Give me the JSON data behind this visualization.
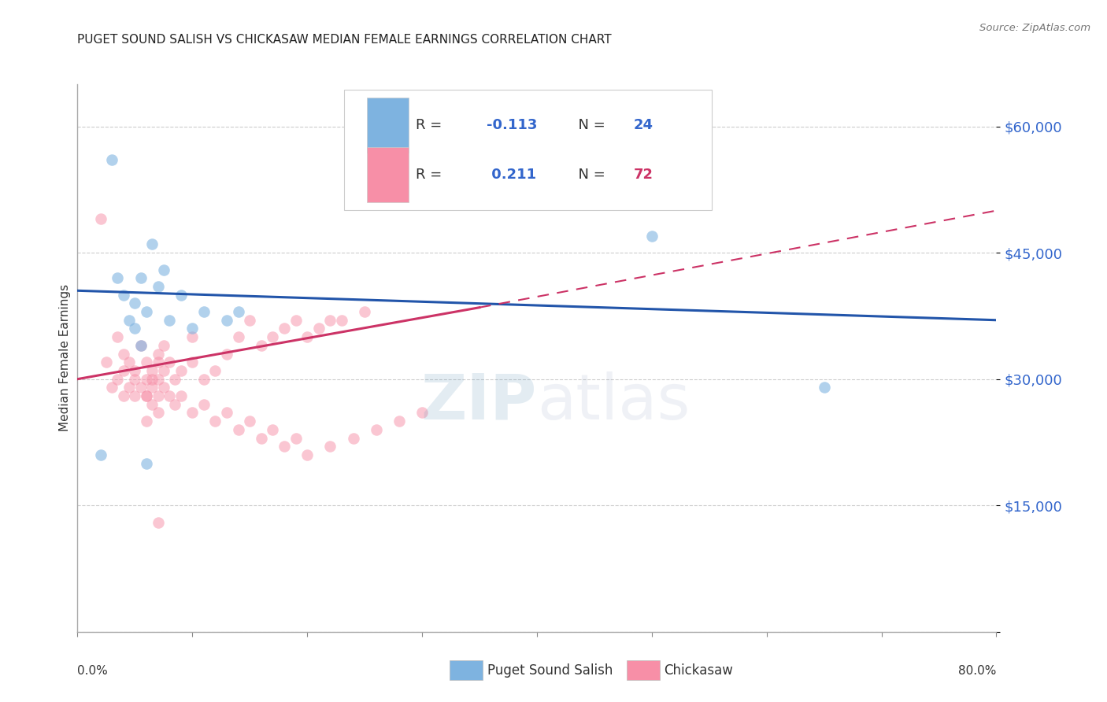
{
  "title": "PUGET SOUND SALISH VS CHICKASAW MEDIAN FEMALE EARNINGS CORRELATION CHART",
  "source": "Source: ZipAtlas.com",
  "ylabel": "Median Female Earnings",
  "yticks": [
    0,
    15000,
    30000,
    45000,
    60000
  ],
  "ytick_labels": [
    "",
    "$15,000",
    "$30,000",
    "$45,000",
    "$60,000"
  ],
  "ymax": 65000,
  "ymin": 0,
  "xmin": 0.0,
  "xmax": 0.8,
  "blue_color": "#7EB3E0",
  "pink_color": "#F78FA7",
  "blue_line_color": "#2255AA",
  "pink_line_color": "#CC3366",
  "ytick_color": "#3366CC",
  "title_color": "#222222",
  "source_color": "#777777",
  "blue_scatter_alpha": 0.6,
  "pink_scatter_alpha": 0.5,
  "marker_size": 110,
  "blue_x": [
    0.02,
    0.03,
    0.035,
    0.04,
    0.045,
    0.05,
    0.05,
    0.055,
    0.055,
    0.06,
    0.065,
    0.07,
    0.075,
    0.08,
    0.09,
    0.1,
    0.11,
    0.13,
    0.14,
    0.5,
    0.65,
    0.06
  ],
  "blue_y": [
    21000,
    56000,
    42000,
    40000,
    37000,
    36000,
    39000,
    34000,
    42000,
    38000,
    46000,
    41000,
    43000,
    37000,
    40000,
    36000,
    38000,
    37000,
    38000,
    47000,
    29000,
    20000
  ],
  "pink_x": [
    0.02,
    0.025,
    0.03,
    0.035,
    0.035,
    0.04,
    0.04,
    0.04,
    0.045,
    0.045,
    0.05,
    0.05,
    0.05,
    0.055,
    0.055,
    0.06,
    0.06,
    0.06,
    0.065,
    0.065,
    0.07,
    0.07,
    0.07,
    0.075,
    0.075,
    0.08,
    0.08,
    0.085,
    0.085,
    0.09,
    0.09,
    0.1,
    0.1,
    0.11,
    0.12,
    0.13,
    0.14,
    0.15,
    0.16,
    0.17,
    0.18,
    0.19,
    0.2,
    0.21,
    0.22,
    0.23,
    0.25,
    0.1,
    0.11,
    0.12,
    0.13,
    0.14,
    0.15,
    0.16,
    0.17,
    0.18,
    0.19,
    0.2,
    0.22,
    0.24,
    0.26,
    0.28,
    0.3,
    0.06,
    0.065,
    0.07,
    0.07,
    0.065,
    0.06,
    0.07,
    0.075
  ],
  "pink_y": [
    49000,
    32000,
    29000,
    35000,
    30000,
    28000,
    33000,
    31000,
    32000,
    29000,
    31000,
    30000,
    28000,
    34000,
    29000,
    32000,
    30000,
    28000,
    31000,
    29000,
    33000,
    30000,
    28000,
    31000,
    29000,
    32000,
    28000,
    30000,
    27000,
    31000,
    28000,
    35000,
    32000,
    30000,
    31000,
    33000,
    35000,
    37000,
    34000,
    35000,
    36000,
    37000,
    35000,
    36000,
    37000,
    37000,
    38000,
    26000,
    27000,
    25000,
    26000,
    24000,
    25000,
    23000,
    24000,
    22000,
    23000,
    21000,
    22000,
    23000,
    24000,
    25000,
    26000,
    25000,
    27000,
    26000,
    13000,
    30000,
    28000,
    32000,
    34000
  ]
}
